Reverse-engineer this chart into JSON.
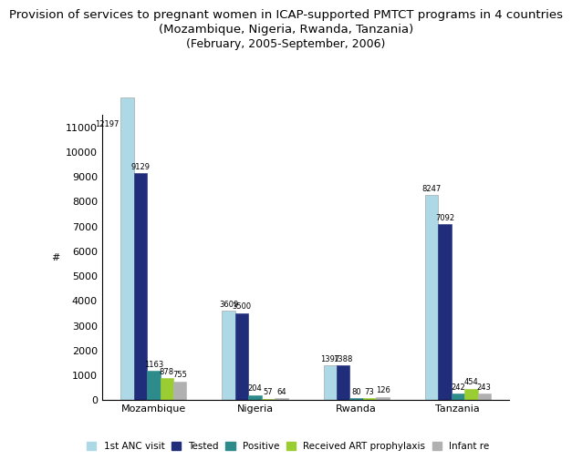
{
  "title_line1": "Provision of services to pregnant women in ICAP-supported PMTCT programs in 4 countries",
  "title_line2": "(Mozambique, Nigeria, Rwanda, Tanzania)",
  "title_line3": "(February, 2005-September, 2006)",
  "categories": [
    "Mozambique",
    "Nigeria",
    "Rwanda",
    "Tanzania"
  ],
  "series": {
    "1st ANC visit": [
      12197,
      3609,
      1397,
      8247
    ],
    "Tested": [
      9129,
      3500,
      1388,
      7092
    ],
    "Positive": [
      1163,
      204,
      80,
      242
    ],
    "Received ART prophylaxis": [
      878,
      57,
      73,
      454
    ],
    "Infant re": [
      755,
      64,
      126,
      243
    ]
  },
  "colors": {
    "1st ANC visit": "#ADD8E6",
    "Tested": "#1F2D7B",
    "Positive": "#2E8B8B",
    "Received ART prophylaxis": "#9ACD32",
    "Infant re": "#B0B0B0"
  },
  "ylabel": "#",
  "ylim_max": 11500,
  "yticks": [
    0,
    1000,
    2000,
    3000,
    4000,
    5000,
    6000,
    7000,
    8000,
    9000,
    10000,
    11000
  ],
  "bar_width": 0.13,
  "background_color": "#FFFFFF",
  "label_fontsize": 6.0,
  "axis_fontsize": 8,
  "title_fontsize": 9.5,
  "legend_fontsize": 7.5
}
